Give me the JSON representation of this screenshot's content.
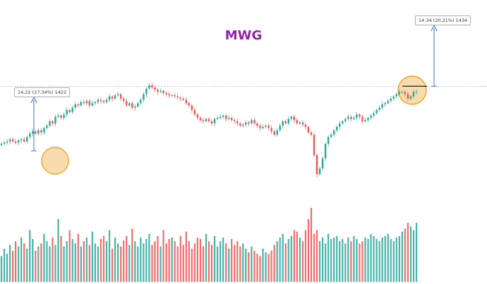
{
  "title": "MWG",
  "colors": {
    "up": "#26a69a",
    "down": "#ef5350",
    "title": "#8e24aa",
    "arrow": "#3f6ad8",
    "resistance": "#90a4ae",
    "highlight_fill": "#f7dcae",
    "highlight_stroke": "#f0a020"
  },
  "annotations": {
    "left_box": "14.22 (27.34%) 1422",
    "right_box": "14.34 (20.21%) 1434"
  },
  "chart_data": {
    "type": "candlestick",
    "title": "MWG",
    "series": [
      {
        "name": "price",
        "values": [
          40,
          41,
          42,
          44,
          42,
          41,
          43,
          44,
          42,
          46,
          49,
          51,
          49,
          52,
          50,
          54,
          56,
          60,
          58,
          64,
          65,
          63,
          66,
          70,
          68,
          72,
          75,
          74,
          77,
          76,
          78,
          74,
          76,
          77,
          79,
          78,
          77,
          79,
          82,
          80,
          83,
          84,
          80,
          78,
          74,
          76,
          72,
          73,
          76,
          79,
          84,
          89,
          92,
          90,
          88,
          86,
          87,
          85,
          84,
          83,
          83,
          82,
          81,
          80,
          79,
          76,
          74,
          70,
          66,
          63,
          61,
          60,
          62,
          60,
          58,
          62,
          63,
          64,
          65,
          62,
          63,
          61,
          60,
          58,
          56,
          57,
          59,
          58,
          61,
          58,
          56,
          54,
          55,
          56,
          54,
          51,
          48,
          52,
          56,
          60,
          58,
          62,
          64,
          61,
          58,
          59,
          57,
          55,
          50,
          48,
          30,
          13,
          18,
          27,
          40,
          46,
          48,
          52,
          55,
          58,
          60,
          62,
          64,
          62,
          63,
          66,
          64,
          60,
          61,
          63,
          65,
          67,
          70,
          72,
          75,
          76,
          78,
          80,
          82,
          84,
          86,
          86,
          84,
          80,
          82,
          86,
          86
        ]
      },
      {
        "name": "volume",
        "values": [
          35,
          45,
          38,
          50,
          42,
          55,
          48,
          60,
          52,
          45,
          70,
          58,
          42,
          48,
          52,
          65,
          55,
          48,
          60,
          50,
          85,
          62,
          48,
          55,
          70,
          58,
          52,
          65,
          48,
          55,
          60,
          50,
          68,
          52,
          48,
          58,
          62,
          55,
          70,
          45,
          60,
          52,
          48,
          56,
          62,
          50,
          72,
          55,
          48,
          60,
          52,
          58,
          65,
          50,
          55,
          62,
          48,
          70,
          52,
          58,
          60,
          55,
          48,
          62,
          50,
          68,
          55,
          45,
          52,
          60,
          58,
          48,
          65,
          55,
          50,
          62,
          48,
          55,
          60,
          52,
          45,
          58,
          50,
          55,
          48,
          52,
          45,
          40,
          48,
          42,
          38,
          35,
          45,
          40,
          38,
          42,
          50,
          55,
          60,
          65,
          52,
          58,
          62,
          70,
          68,
          60,
          55,
          70,
          85,
          100,
          65,
          70,
          55,
          60,
          52,
          65,
          58,
          60,
          62,
          55,
          58,
          52,
          60,
          55,
          62,
          58,
          52,
          55,
          60,
          58,
          65,
          62,
          58,
          55,
          60,
          62,
          65,
          58,
          55,
          60,
          62,
          68,
          72,
          80,
          75,
          70,
          80
        ]
      }
    ],
    "resistance_level": 91,
    "ylim": [
      0,
      100
    ],
    "grid": false,
    "legend": "none"
  }
}
